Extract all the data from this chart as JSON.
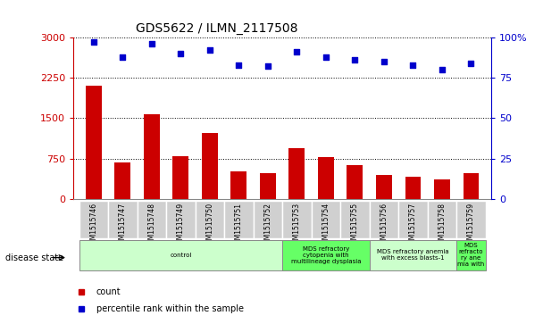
{
  "title": "GDS5622 / ILMN_2117508",
  "samples": [
    "GSM1515746",
    "GSM1515747",
    "GSM1515748",
    "GSM1515749",
    "GSM1515750",
    "GSM1515751",
    "GSM1515752",
    "GSM1515753",
    "GSM1515754",
    "GSM1515755",
    "GSM1515756",
    "GSM1515757",
    "GSM1515758",
    "GSM1515759"
  ],
  "counts": [
    2100,
    680,
    1580,
    800,
    1230,
    520,
    490,
    950,
    780,
    640,
    450,
    420,
    360,
    490
  ],
  "percentiles": [
    97,
    88,
    96,
    90,
    92,
    83,
    82,
    91,
    88,
    86,
    85,
    83,
    80,
    84
  ],
  "bar_color": "#cc0000",
  "dot_color": "#0000cc",
  "ylim_left": [
    0,
    3000
  ],
  "ylim_right": [
    0,
    100
  ],
  "yticks_left": [
    0,
    750,
    1500,
    2250,
    3000
  ],
  "yticks_right": [
    0,
    25,
    50,
    75,
    100
  ],
  "disease_states": [
    {
      "label": "control",
      "start": 0,
      "end": 7,
      "color": "#ccffcc"
    },
    {
      "label": "MDS refractory\ncytopenia with\nmultilineage dysplasia",
      "start": 7,
      "end": 10,
      "color": "#66ff66"
    },
    {
      "label": "MDS refractory anemia\nwith excess blasts-1",
      "start": 10,
      "end": 13,
      "color": "#ccffcc"
    },
    {
      "label": "MDS\nrefracto\nry ane\nmia with",
      "start": 13,
      "end": 14,
      "color": "#66ff66"
    }
  ],
  "legend_items": [
    {
      "label": "count",
      "color": "#cc0000"
    },
    {
      "label": "percentile rank within the sample",
      "color": "#0000cc"
    }
  ],
  "background_color": "#ffffff",
  "tick_color_left": "#cc0000",
  "tick_color_right": "#0000cc",
  "xtick_bg": "#d0d0d0",
  "plot_bg": "#ffffff"
}
